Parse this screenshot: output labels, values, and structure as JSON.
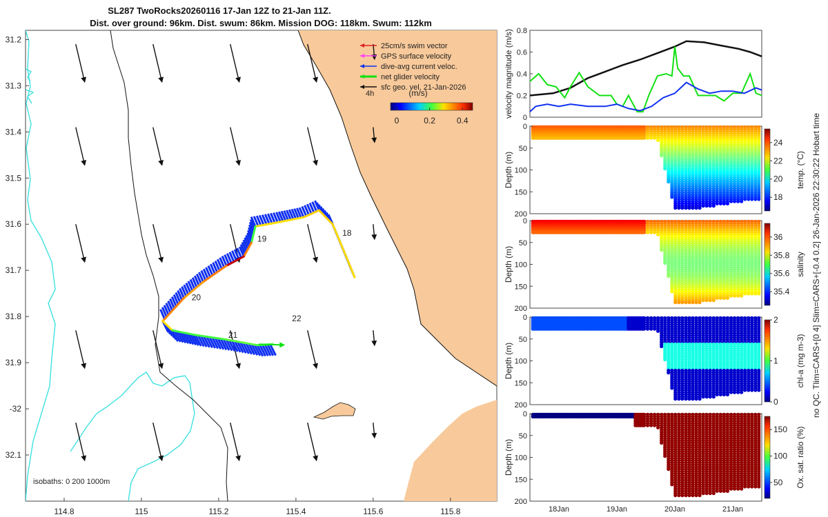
{
  "colors": {
    "land": "#f8c99a",
    "isobath": "#40e0e0",
    "coast": "#111111",
    "swim": "#e02020",
    "gps": "#ff40ff",
    "dive_avg": "#1030f0",
    "net": "#10e010",
    "geo": "#111111"
  },
  "chart_data": [
    {
      "type": "map",
      "name": "track-map",
      "title_line1": "SL287 TwoRocks20260116 17-Jan 12Z to 21-Jan 11Z.",
      "title_line2": "Dist. over ground: 96km. Dist. swum: 86km. Mission DOG: 118km. Swum: 112km",
      "xlim": [
        114.7,
        115.92
      ],
      "ylim": [
        -32.2,
        -31.18
      ],
      "x_ticks": [
        114.8,
        115.0,
        115.2,
        115.4,
        115.6,
        115.8
      ],
      "x_tick_labels": [
        "114.8",
        "115",
        "115.2",
        "115.4",
        "115.6",
        "115.8"
      ],
      "y_ticks": [
        -31.2,
        -31.3,
        -31.4,
        -31.5,
        -31.6,
        -31.7,
        -31.8,
        -31.9,
        -32.0,
        -32.1
      ],
      "y_tick_labels": [
        "31.2",
        "31.3",
        "31.4",
        "31.5",
        "31.6",
        "31.7",
        "31.8",
        "31.9",
        "-32",
        "32.1"
      ],
      "legend": [
        {
          "label": "25cm/s swim vector",
          "color_key": "swim"
        },
        {
          "label": "GPS surface velocity",
          "color_key": "gps"
        },
        {
          "label": "dive-avg current veloc.",
          "color_key": "dive_avg"
        },
        {
          "label": "net glider velocity",
          "color_key": "net"
        },
        {
          "label": "sfc geo. vel. 21-Jan-2026",
          "color_key": "geo"
        }
      ],
      "legend_note": "4h",
      "colorbar": {
        "label": "(m/s)",
        "ticks": [
          "0",
          "0.2",
          "0.4"
        ],
        "range": [
          0,
          0.5
        ]
      },
      "isobath_note": "isobaths: 0   200  1000m",
      "day_labels": [
        {
          "text": "18",
          "lon": 115.52,
          "lat": -31.625
        },
        {
          "text": "19",
          "lon": 115.3,
          "lat": -31.638
        },
        {
          "text": "20",
          "lon": 115.13,
          "lat": -31.765
        },
        {
          "text": "21",
          "lon": 115.225,
          "lat": -31.846
        },
        {
          "text": "22",
          "lon": 115.39,
          "lat": -31.81
        }
      ],
      "track": [
        {
          "lon": 115.552,
          "lat": -31.715
        },
        {
          "lon": 115.53,
          "lat": -31.67
        },
        {
          "lon": 115.495,
          "lat": -31.6
        },
        {
          "lon": 115.46,
          "lat": -31.57
        },
        {
          "lon": 115.42,
          "lat": -31.585
        },
        {
          "lon": 115.36,
          "lat": -31.595
        },
        {
          "lon": 115.295,
          "lat": -31.605
        },
        {
          "lon": 115.285,
          "lat": -31.64
        },
        {
          "lon": 115.265,
          "lat": -31.67
        },
        {
          "lon": 115.22,
          "lat": -31.69
        },
        {
          "lon": 115.16,
          "lat": -31.725
        },
        {
          "lon": 115.11,
          "lat": -31.76
        },
        {
          "lon": 115.055,
          "lat": -31.81
        },
        {
          "lon": 115.08,
          "lat": -31.83
        },
        {
          "lon": 115.14,
          "lat": -31.84
        },
        {
          "lon": 115.22,
          "lat": -31.85
        },
        {
          "lon": 115.3,
          "lat": -31.862
        },
        {
          "lon": 115.34,
          "lat": -31.86
        }
      ],
      "geo_arrow_cols": [
        114.83,
        115.03,
        115.23,
        115.43,
        115.6
      ],
      "geo_arrow_rows": [
        -31.21,
        -31.39,
        -31.6,
        -31.83,
        -32.03
      ]
    },
    {
      "type": "line",
      "name": "velocity-magnitude",
      "ylabel": "velocity magnitude (m/s)",
      "ylim": [
        0,
        0.8
      ],
      "y_ticks": [
        0,
        0.2,
        0.4,
        0.6,
        0.8
      ],
      "y_tick_labels": [
        "0",
        "0.2",
        "0.4",
        "0.6",
        "0.8"
      ],
      "xlim": [
        17.5,
        21.5
      ],
      "series": [
        {
          "name": "black",
          "color_key": "geo",
          "x": [
            17.5,
            17.9,
            18.2,
            18.5,
            18.8,
            19.1,
            19.4,
            19.7,
            20.0,
            20.2,
            20.5,
            20.8,
            21.1,
            21.3,
            21.5
          ],
          "y": [
            0.2,
            0.22,
            0.27,
            0.36,
            0.42,
            0.48,
            0.53,
            0.59,
            0.65,
            0.7,
            0.69,
            0.66,
            0.63,
            0.6,
            0.56
          ]
        },
        {
          "name": "green",
          "color_key": "net",
          "x": [
            17.5,
            17.65,
            17.8,
            17.95,
            18.1,
            18.2,
            18.35,
            18.5,
            18.7,
            18.9,
            19.0,
            19.1,
            19.2,
            19.35,
            19.45,
            19.55,
            19.7,
            19.85,
            19.95,
            20.0,
            20.05,
            20.15,
            20.25,
            20.4,
            20.55,
            20.7,
            20.85,
            21.0,
            21.15,
            21.3,
            21.4,
            21.5
          ],
          "y": [
            0.33,
            0.4,
            0.3,
            0.28,
            0.18,
            0.28,
            0.41,
            0.28,
            0.2,
            0.2,
            0.12,
            0.1,
            0.2,
            0.05,
            0.05,
            0.2,
            0.38,
            0.4,
            0.38,
            0.65,
            0.45,
            0.38,
            0.38,
            0.2,
            0.2,
            0.2,
            0.15,
            0.22,
            0.22,
            0.4,
            0.22,
            0.2
          ]
        },
        {
          "name": "blue",
          "color_key": "dive_avg",
          "x": [
            17.5,
            17.6,
            17.8,
            18.0,
            18.2,
            18.5,
            18.8,
            19.0,
            19.2,
            19.4,
            19.6,
            19.8,
            20.0,
            20.2,
            20.4,
            20.6,
            20.8,
            21.0,
            21.2,
            21.4,
            21.5
          ],
          "y": [
            0.05,
            0.1,
            0.12,
            0.1,
            0.12,
            0.1,
            0.1,
            0.12,
            0.08,
            0.06,
            0.1,
            0.18,
            0.22,
            0.32,
            0.26,
            0.22,
            0.24,
            0.24,
            0.22,
            0.27,
            0.25
          ]
        }
      ]
    },
    {
      "type": "scatter-section",
      "name": "temperature",
      "ylabel": "Depth (m)",
      "clabel": "temp. (°C)",
      "ylim": [
        0,
        200
      ],
      "y_ticks": [
        0,
        50,
        100,
        150,
        200
      ],
      "c_ticks": [
        "18",
        "20",
        "22",
        "24"
      ],
      "c_range": [
        16.5,
        25.5
      ],
      "surface_value": 23.2,
      "deep_value": 17.5
    },
    {
      "type": "scatter-section",
      "name": "salinity",
      "ylabel": "Depth (m)",
      "clabel": "salinity",
      "ylim": [
        0,
        200
      ],
      "y_ticks": [
        0,
        50,
        100,
        150,
        200
      ],
      "c_ticks": [
        "35.4",
        "35.6",
        "35.8",
        "36"
      ],
      "c_range": [
        35.25,
        36.15
      ],
      "surface_value": 35.95,
      "deep_value": 35.8
    },
    {
      "type": "scatter-section",
      "name": "chl-a",
      "ylabel": "Depth (m)",
      "clabel": "chl-a (mg m-3)",
      "ylim": [
        0,
        200
      ],
      "y_ticks": [
        0,
        50,
        100,
        150,
        200
      ],
      "c_ticks": [
        "0",
        "1",
        "2"
      ],
      "c_range": [
        0,
        2
      ],
      "surface_value": 0.2,
      "deep_value": 0.1
    },
    {
      "type": "scatter-section",
      "name": "oxygen",
      "ylabel": "Depth (m)",
      "clabel": "Ox. sat. ratio (%)",
      "ylim": [
        0,
        200
      ],
      "y_ticks": [
        0,
        50,
        100,
        150,
        200
      ],
      "c_ticks": [
        "50",
        "100",
        "150"
      ],
      "c_range": [
        20,
        175
      ],
      "surface_value": 20,
      "deep_value": 172
    }
  ],
  "time_axis": {
    "ticks": [
      18,
      19,
      20,
      21
    ],
    "tick_labels": [
      "18Jan",
      "19Jan",
      "20Jan",
      "21Jan"
    ],
    "xlim": [
      17.5,
      21.5
    ]
  },
  "right_caption": "no QC. Tlim=CARS+[0 4] Slim=CARS+[-0.4 0.2] 26-Jan-2026 22:30:22 Hobart time"
}
